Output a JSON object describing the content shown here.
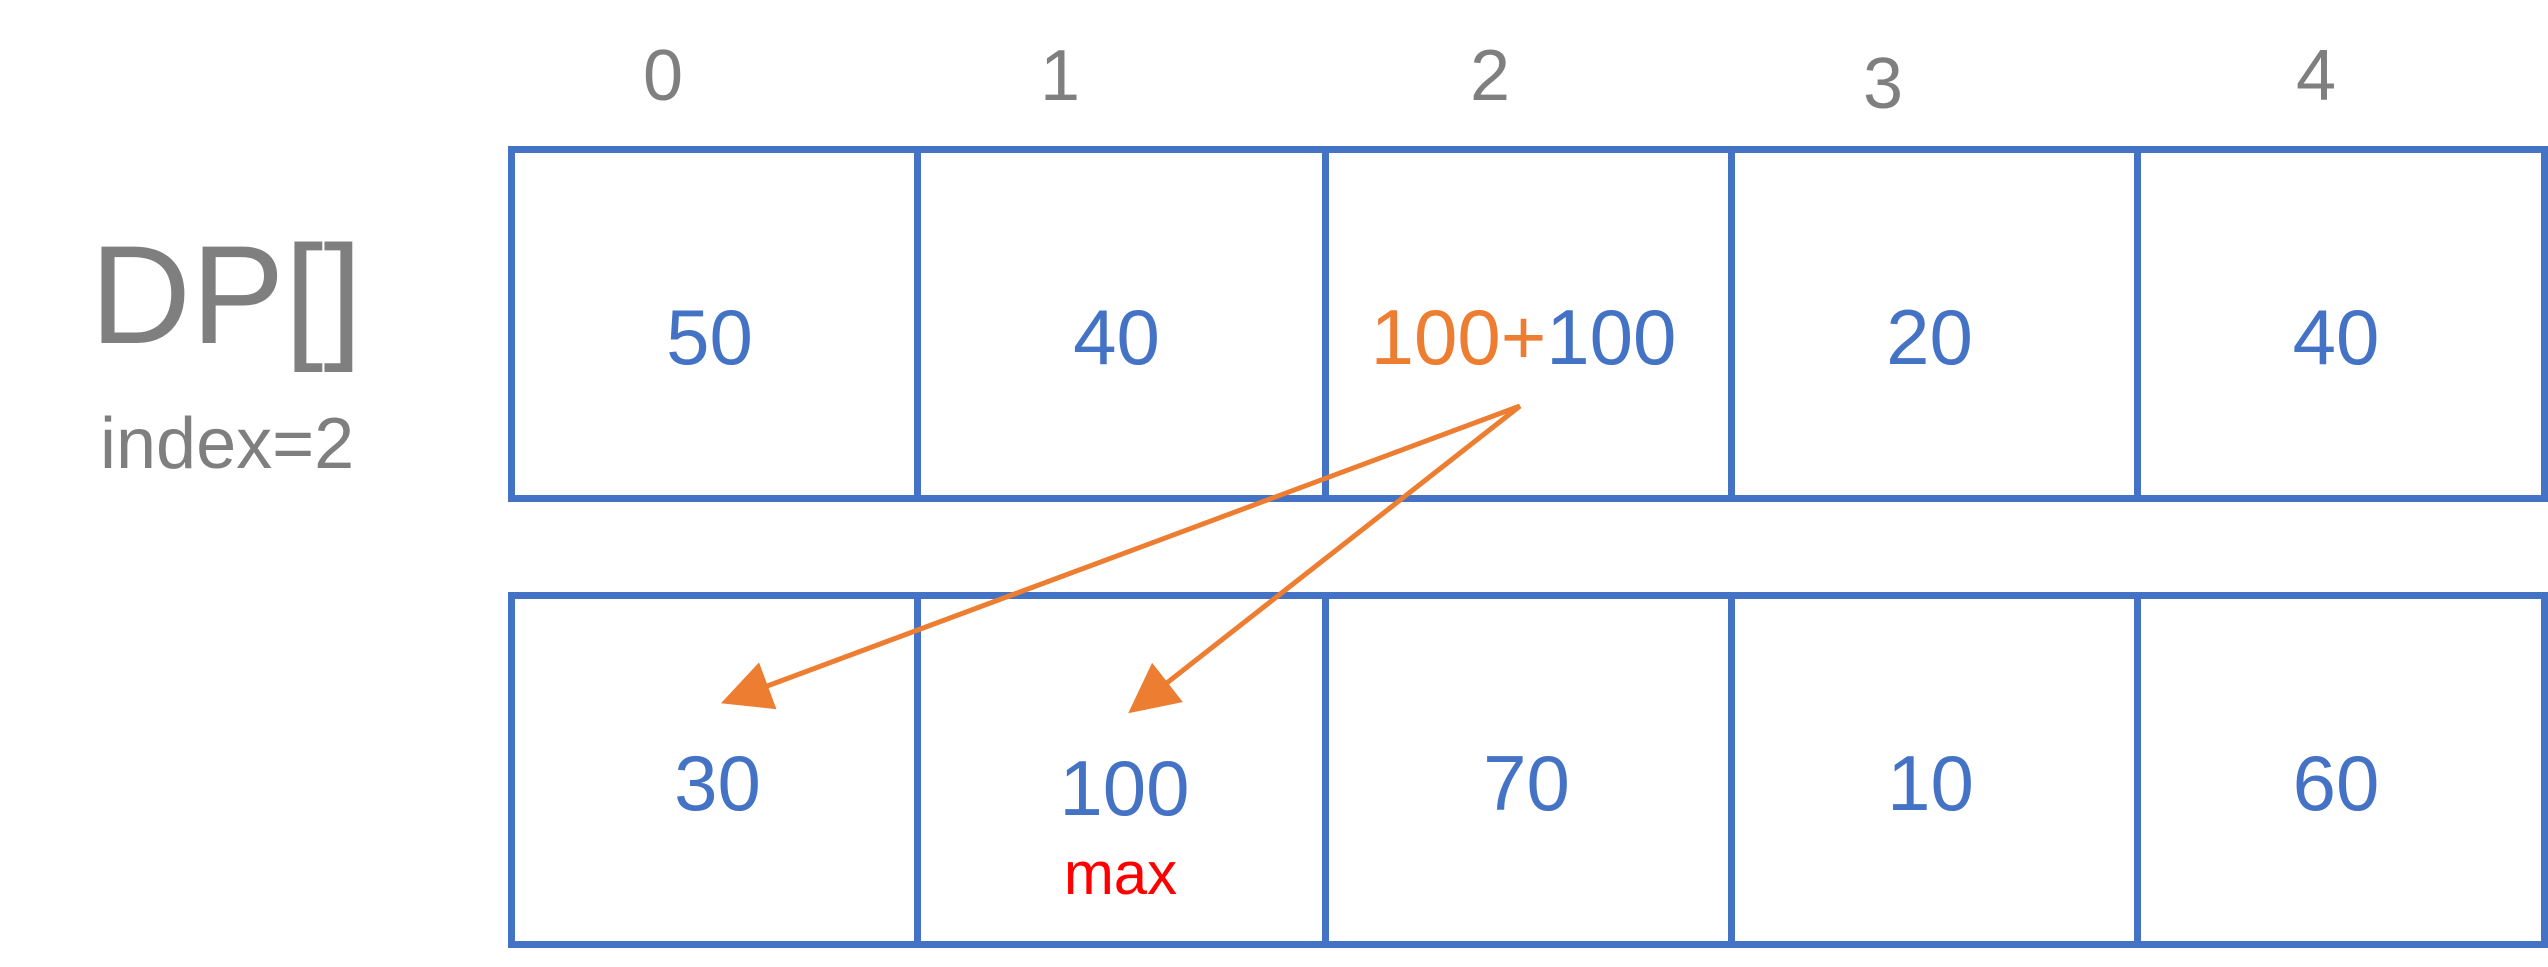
{
  "indices": [
    "0",
    "1",
    "2",
    "3",
    "4"
  ],
  "title": "DP[]",
  "subtitle": "index=2",
  "top_row": {
    "cells": [
      "50",
      "40",
      "",
      "20",
      "40"
    ],
    "sum_cell": {
      "left": "100+",
      "right": "100"
    }
  },
  "bottom_row": {
    "cells": [
      "30",
      "100",
      "70",
      "10",
      "60"
    ],
    "max_label": "max"
  },
  "colors": {
    "cell_border": "#4472c4",
    "value_text": "#4472c4",
    "arrow": "#ed7d31",
    "label_gray": "#7f7f7f",
    "max_red": "#ff0000"
  },
  "arrows": [
    {
      "from": "top-cell-2",
      "to": "bottom-cell-0"
    },
    {
      "from": "top-cell-2",
      "to": "bottom-cell-1"
    }
  ]
}
